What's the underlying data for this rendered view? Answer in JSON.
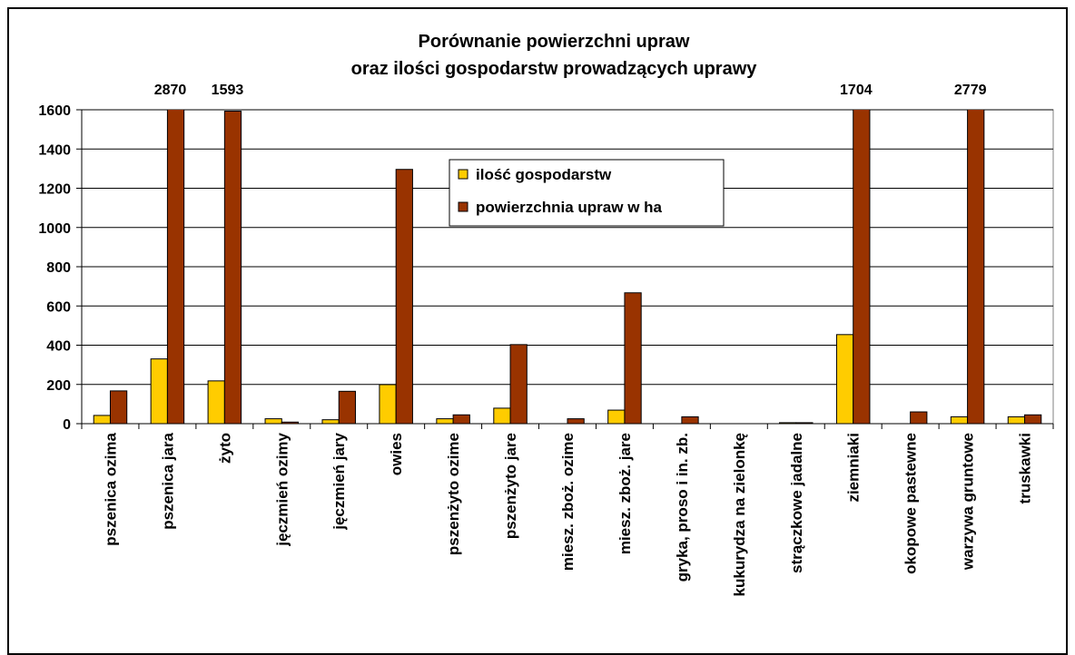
{
  "chart_data": {
    "type": "bar",
    "title": "Porównanie powierzchni upraw",
    "subtitle": "oraz ilości gospodarstw prowadzących uprawy",
    "categories": [
      "pszenica ozima",
      "pszenica jara",
      "żyto",
      "jęczmień ozimy",
      "jęczmień jary",
      "owies",
      "pszenżyto ozime",
      "pszenżyto jare",
      "miesz. zboż. ozime",
      "miesz. zboż. jare",
      "gryka, proso i in. zb.",
      "kukurydza na zielonkę",
      "strączkowe jadalne",
      "ziemniaki",
      "okopowe pastewne",
      "warzywa gruntowe",
      "truskawki"
    ],
    "series": [
      {
        "name": "ilość gospodarstw",
        "color": "#ffcc00",
        "values": [
          42,
          330,
          218,
          25,
          20,
          199,
          25,
          79,
          0,
          69,
          0,
          0,
          5,
          454,
          0,
          35,
          35
        ]
      },
      {
        "name": "powierzchnia upraw w ha",
        "color": "#993300",
        "values": [
          167,
          2870,
          1593,
          8,
          165,
          1296,
          45,
          403,
          25,
          667,
          35,
          0,
          5,
          1704,
          60,
          2779,
          45
        ],
        "value_labels": [
          null,
          "2870",
          "1593",
          null,
          null,
          null,
          null,
          null,
          null,
          null,
          null,
          null,
          null,
          "1704",
          null,
          "2779",
          null
        ]
      }
    ],
    "ylim": [
      0,
      1600
    ],
    "yticks": [
      0,
      200,
      400,
      600,
      800,
      1000,
      1200,
      1400,
      1600
    ],
    "grid": true
  }
}
